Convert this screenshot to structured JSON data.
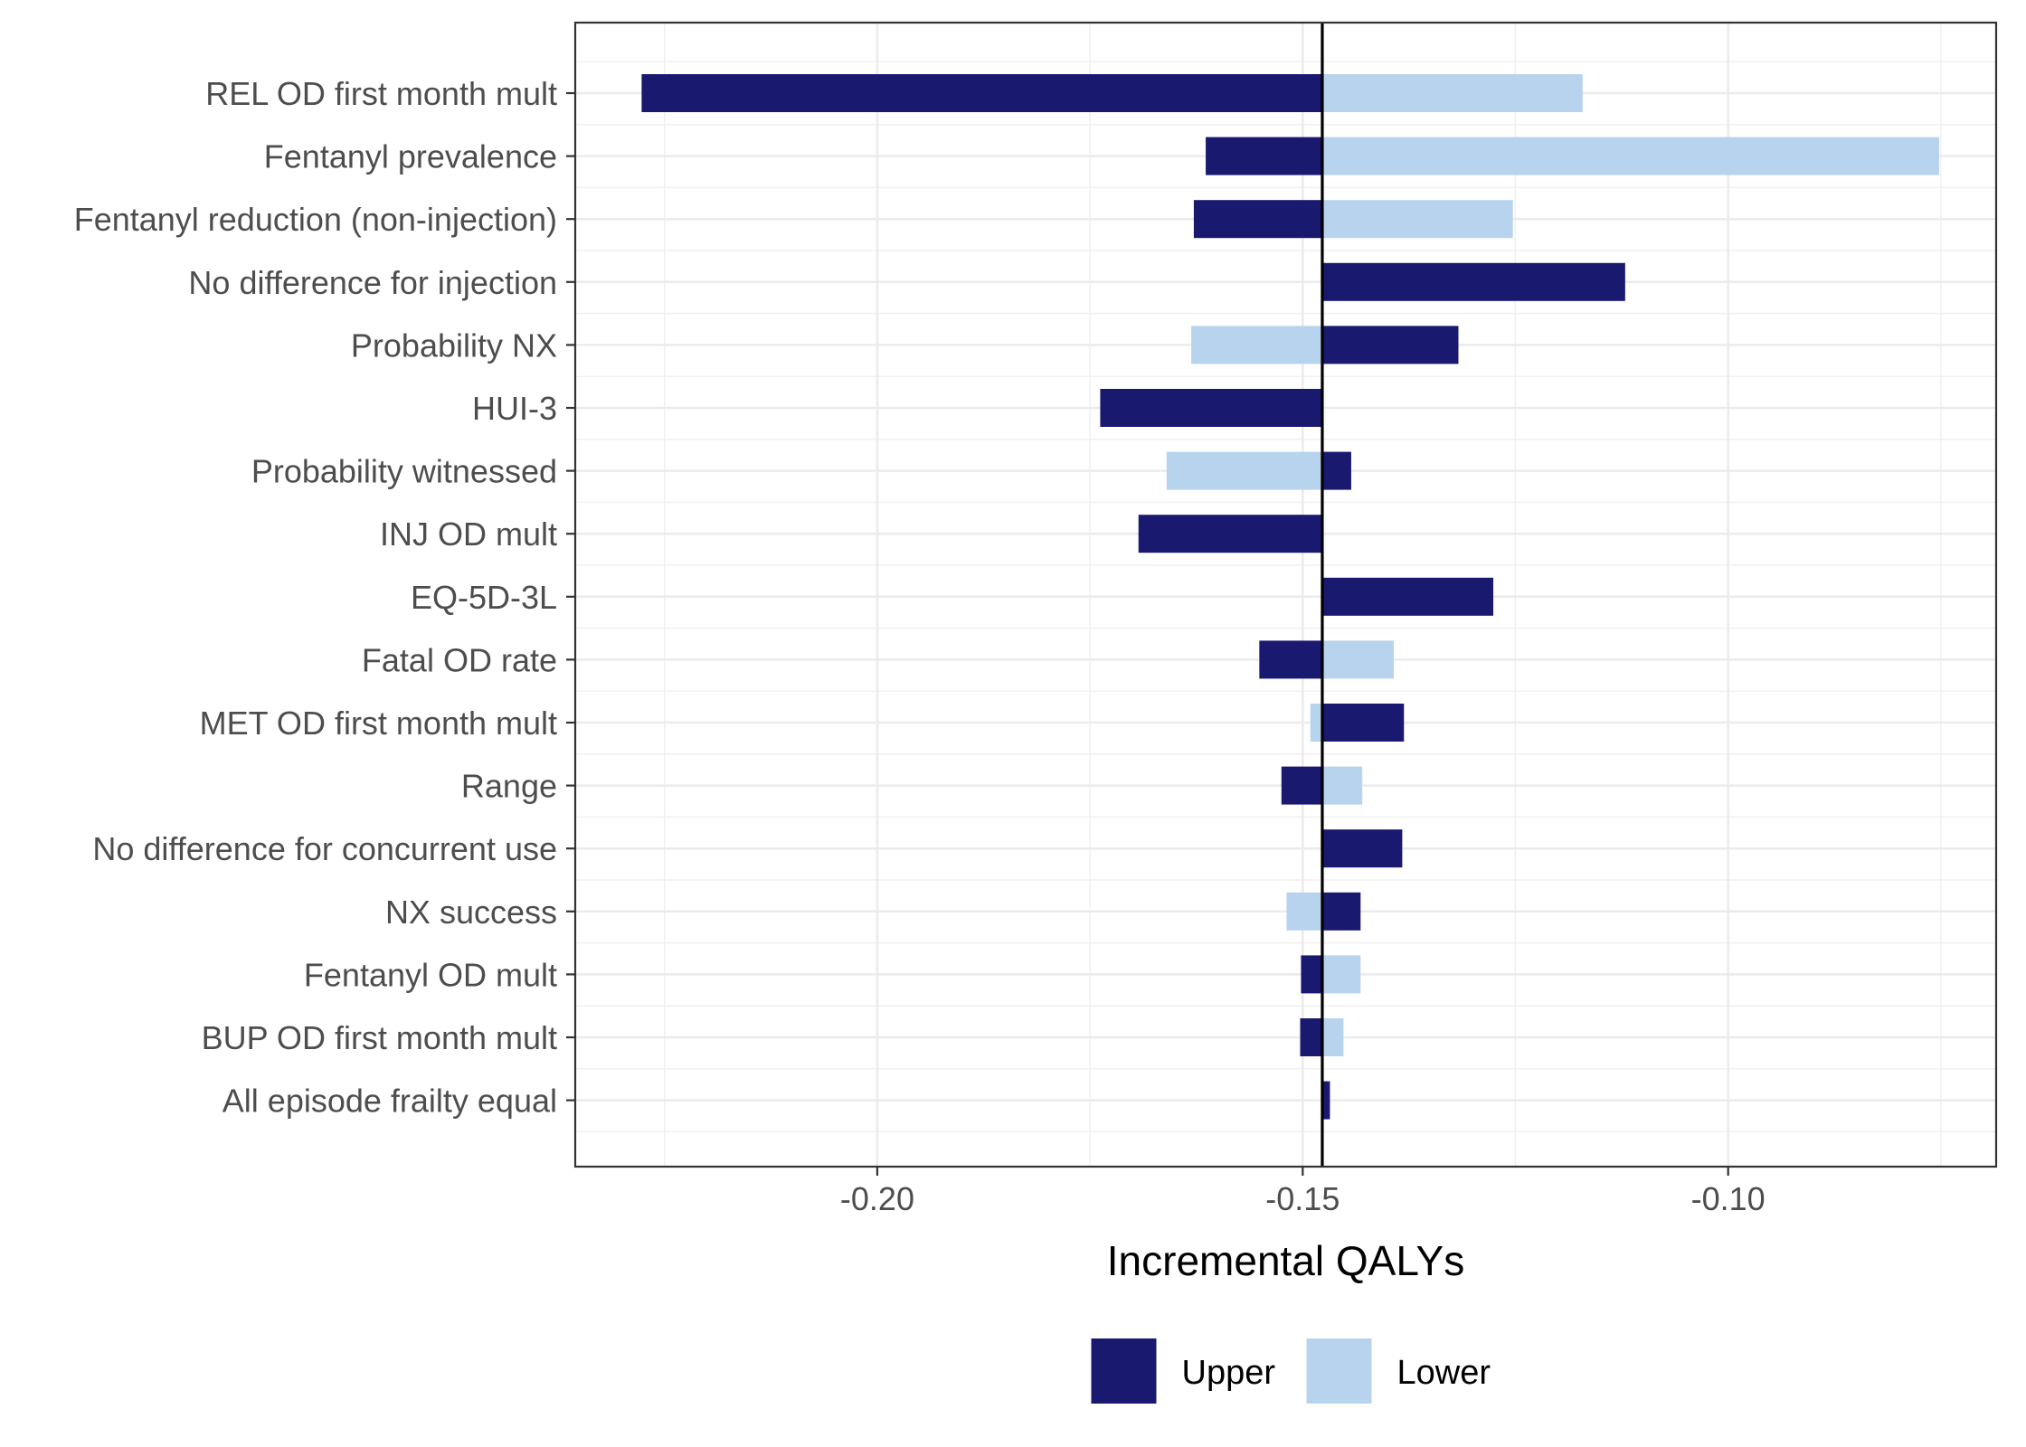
{
  "chart_data": {
    "type": "bar",
    "orientation": "horizontal",
    "subtype": "tornado",
    "title": "",
    "xlabel": "Incremental QALYs",
    "ylabel": "",
    "baseline": -0.1477,
    "xlim": [
      -0.2355,
      -0.0685
    ],
    "xticks": [
      -0.2,
      -0.15,
      -0.1
    ],
    "xtick_labels": [
      "-0.20",
      "-0.15",
      "-0.10"
    ],
    "grid": true,
    "legend_position": "bottom",
    "categories": [
      "REL OD first month mult",
      "Fentanyl prevalence",
      "Fentanyl reduction (non-injection)",
      "No difference for injection",
      "Probability NX",
      "HUI-3",
      "Probability witnessed",
      "INJ OD mult",
      "EQ-5D-3L",
      "Fatal OD rate",
      "MET OD first month mult",
      "Range",
      "No difference for concurrent use",
      "NX success",
      "Fentanyl OD mult",
      "BUP OD first month mult",
      "All episode frailty equal"
    ],
    "series": [
      {
        "name": "Upper",
        "color": "#191970",
        "values": [
          -0.2277,
          -0.1614,
          -0.1628,
          -0.1121,
          -0.1317,
          -0.1738,
          -0.1443,
          -0.1693,
          -0.1276,
          -0.1551,
          -0.1381,
          -0.1525,
          -0.1383,
          -0.1432,
          -0.1502,
          -0.1503,
          -0.1468
        ]
      },
      {
        "name": "Lower",
        "color": "#b8d3ee",
        "values": [
          -0.1171,
          -0.0752,
          -0.1253,
          null,
          -0.1631,
          null,
          -0.166,
          null,
          null,
          -0.1393,
          -0.1491,
          -0.143,
          null,
          -0.1519,
          -0.1432,
          -0.1452,
          null
        ]
      }
    ],
    "legend": [
      "Upper",
      "Lower"
    ]
  }
}
